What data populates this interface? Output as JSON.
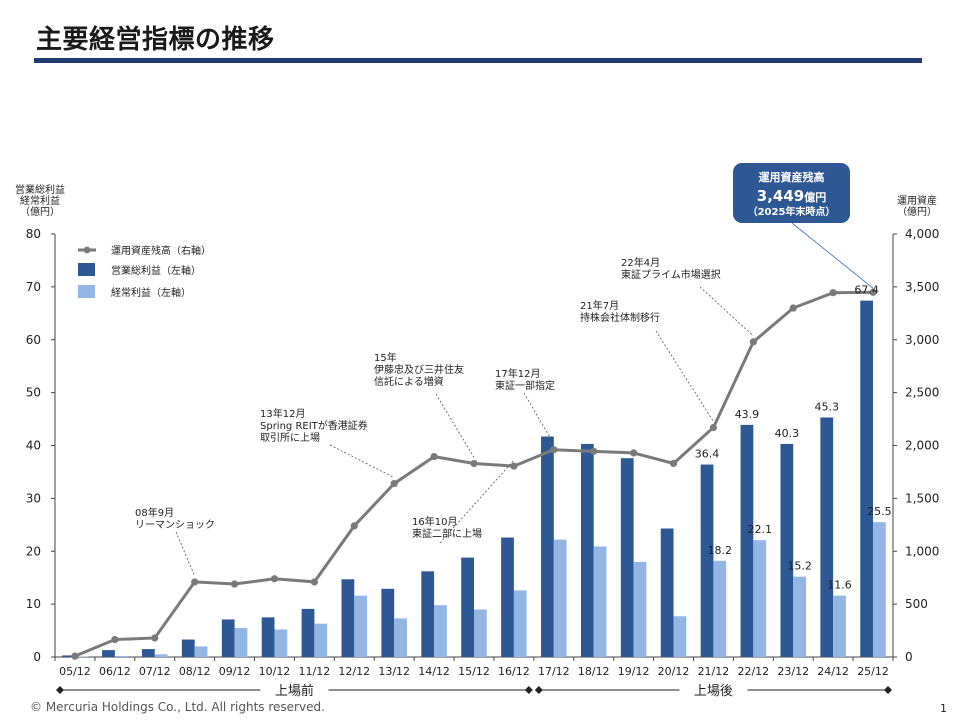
{
  "page": {
    "title": "主要経営指標の推移",
    "copyright": "© Mercuria Holdings Co., Ltd. All rights reserved.",
    "page_number": "1"
  },
  "colors": {
    "title_rule": "#1f3c73",
    "bar_gross": "#2e5894",
    "bar_ordinary": "#93b6e4",
    "line_aum": "#7a7a7a",
    "badge": "#2e5894"
  },
  "badge": {
    "line1": "運用資産残高",
    "value": "3,449",
    "unit": "億円",
    "line3": "（2025年末時点）"
  },
  "chart_data": {
    "type": "bar",
    "title": "",
    "y_left_label": [
      "営業総利益",
      "経常利益",
      "（億円）"
    ],
    "y_right_label": [
      "運用資産",
      "（億円）"
    ],
    "ylim_left": [
      0,
      80
    ],
    "ylim_right": [
      0,
      4000
    ],
    "y_left_ticks": [
      "0",
      "10",
      "20",
      "30",
      "40",
      "50",
      "60",
      "70",
      "80"
    ],
    "y_right_ticks": [
      "0",
      "500",
      "1,000",
      "1,500",
      "2,000",
      "2,500",
      "3,000",
      "3,500",
      "4,000"
    ],
    "categories": [
      "05/12",
      "06/12",
      "07/12",
      "08/12",
      "09/12",
      "10/12",
      "11/12",
      "12/12",
      "13/12",
      "14/12",
      "15/12",
      "16/12",
      "17/12",
      "18/12",
      "19/12",
      "20/12",
      "21/12",
      "22/12",
      "23/12",
      "24/12",
      "25/12"
    ],
    "series": [
      {
        "name": "営業総利益（左軸）",
        "kind": "bar",
        "axis": "left",
        "values": [
          0.3,
          1.3,
          1.5,
          3.3,
          7.1,
          7.5,
          9.1,
          14.7,
          12.9,
          16.2,
          18.8,
          22.6,
          41.7,
          40.3,
          37.6,
          24.3,
          36.4,
          43.9,
          40.3,
          45.3,
          67.4
        ],
        "labels": [
          "",
          "",
          "",
          "",
          "",
          "",
          "",
          "",
          "",
          "",
          "",
          "",
          "",
          "",
          "",
          "",
          "36.4",
          "43.9",
          "40.3",
          "45.3",
          "67.4"
        ]
      },
      {
        "name": "経常利益（左軸）",
        "kind": "bar",
        "axis": "left",
        "values": [
          0.1,
          0.2,
          0.5,
          2.0,
          5.5,
          5.2,
          6.3,
          11.6,
          7.3,
          9.8,
          9.0,
          12.6,
          22.2,
          20.9,
          18.0,
          7.7,
          18.2,
          22.1,
          15.2,
          11.6,
          25.5
        ],
        "labels": [
          "",
          "",
          "",
          "",
          "",
          "",
          "",
          "",
          "",
          "",
          "",
          "",
          "",
          "",
          "",
          "",
          "18.2",
          "22.1",
          "15.2",
          "11.6",
          "25.5"
        ]
      },
      {
        "name": "運用資産残高（右軸）",
        "kind": "line",
        "axis": "right",
        "values": [
          8,
          165,
          180,
          710,
          690,
          740,
          710,
          1240,
          1640,
          1895,
          1830,
          1805,
          1960,
          1945,
          1930,
          1830,
          2170,
          2980,
          3300,
          3445,
          3449
        ]
      }
    ],
    "annotations": [
      {
        "lines": [
          "08年9月",
          "リーマンショック"
        ],
        "target": 3
      },
      {
        "lines": [
          "13年12月",
          "Spring REITが香港証券",
          "取引所に上場"
        ],
        "target": 8
      },
      {
        "lines": [
          "15年",
          "伊藤忠及び三井住友",
          "信託による増資"
        ],
        "target": 10
      },
      {
        "lines": [
          "16年10月",
          "東証二部に上場"
        ],
        "target": 11
      },
      {
        "lines": [
          "17年12月",
          "東証一部指定"
        ],
        "target": 12
      },
      {
        "lines": [
          "21年7月",
          "持株会社体制移行"
        ],
        "target": 16
      },
      {
        "lines": [
          "22年4月",
          "東証プライム市場選択"
        ],
        "target": 17
      }
    ],
    "periods": [
      {
        "label": "上場前",
        "from": 0,
        "to": 11
      },
      {
        "label": "上場後",
        "from": 12,
        "to": 20
      }
    ],
    "legend_position": "top-left",
    "grid": false
  }
}
